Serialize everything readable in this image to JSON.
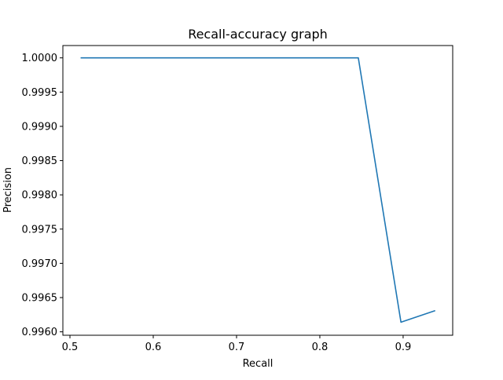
{
  "chart_data": {
    "type": "line",
    "title": "Recall-accuracy graph",
    "xlabel": "Recall",
    "ylabel": "Precision",
    "xlim": [
      0.4915,
      0.9595
    ],
    "ylim": [
      0.99595,
      1.00018
    ],
    "x_ticks": [
      0.5,
      0.6,
      0.7,
      0.8,
      0.9
    ],
    "x_tick_labels": [
      "0.5",
      "0.6",
      "0.7",
      "0.8",
      "0.9"
    ],
    "y_ticks": [
      0.996,
      0.9965,
      0.997,
      0.9975,
      0.998,
      0.9985,
      0.999,
      0.9995,
      1.0
    ],
    "y_tick_labels": [
      "0.9960",
      "0.9965",
      "0.9970",
      "0.9975",
      "0.9980",
      "0.9985",
      "0.9990",
      "0.9995",
      "1.0000"
    ],
    "grid": false,
    "series": [
      {
        "color": "#1f77b4",
        "x": [
          0.5128,
          0.6,
          0.7,
          0.8,
          0.8462,
          0.8974,
          0.9385
        ],
        "y": [
          1.0,
          1.0,
          1.0,
          1.0,
          1.0,
          0.99614,
          0.99631
        ]
      }
    ]
  }
}
